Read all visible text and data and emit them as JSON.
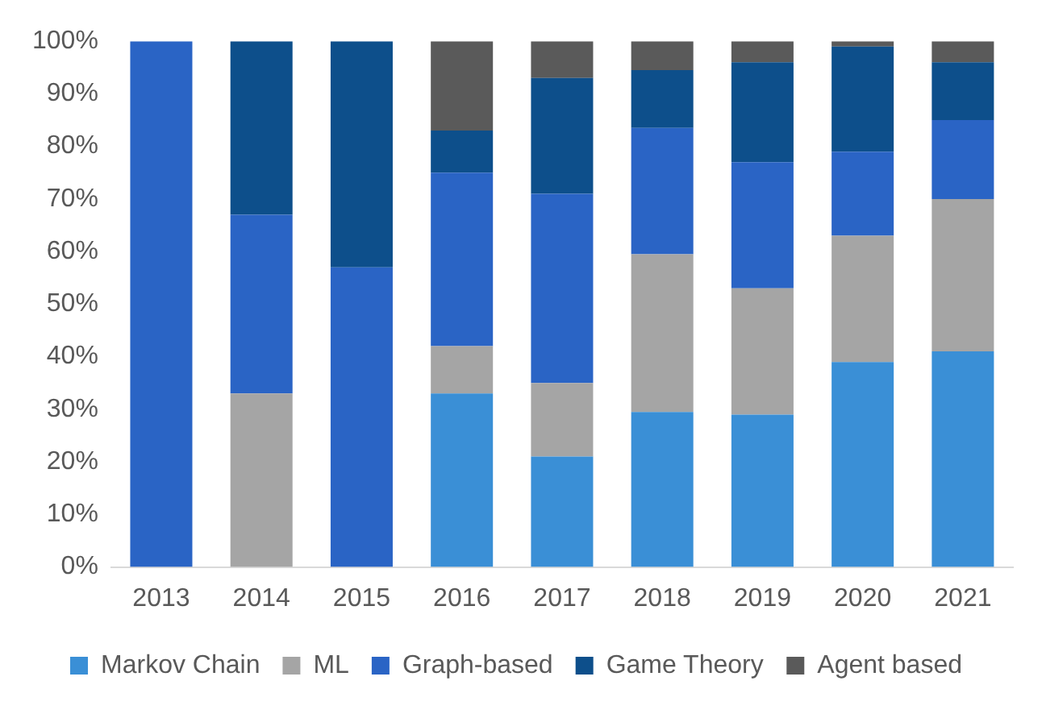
{
  "chart_data": {
    "type": "bar",
    "stacked": true,
    "categories": [
      "2013",
      "2014",
      "2015",
      "2016",
      "2017",
      "2018",
      "2019",
      "2020",
      "2021"
    ],
    "series": [
      {
        "name": "Markov Chain",
        "color": "#3a8fd6",
        "values": [
          0,
          0,
          0,
          33,
          21,
          29.5,
          29,
          39,
          41
        ]
      },
      {
        "name": "ML",
        "color": "#a5a5a5",
        "values": [
          0,
          33,
          0,
          9,
          14,
          30,
          24,
          24,
          29
        ]
      },
      {
        "name": "Graph-based",
        "color": "#2a64c5",
        "values": [
          100,
          34,
          57,
          33,
          36,
          24,
          24,
          16,
          15
        ]
      },
      {
        "name": "Game Theory",
        "color": "#0d4f8b",
        "values": [
          0,
          33,
          43,
          8,
          22,
          11,
          19,
          20,
          11
        ]
      },
      {
        "name": "Agent based",
        "color": "#5a5a5a",
        "values": [
          0,
          0,
          0,
          17,
          7,
          5.5,
          4,
          1,
          4
        ]
      }
    ],
    "ylim": [
      0,
      100
    ],
    "yticks": [
      {
        "value": 0,
        "label": "0%"
      },
      {
        "value": 10,
        "label": "10%"
      },
      {
        "value": 20,
        "label": "20%"
      },
      {
        "value": 30,
        "label": "30%"
      },
      {
        "value": 40,
        "label": "40%"
      },
      {
        "value": 50,
        "label": "50%"
      },
      {
        "value": 60,
        "label": "60%"
      },
      {
        "value": 70,
        "label": "70%"
      },
      {
        "value": 80,
        "label": "80%"
      },
      {
        "value": 90,
        "label": "90%"
      },
      {
        "value": 100,
        "label": "100%"
      }
    ],
    "grid": false,
    "legend": "bottom"
  }
}
